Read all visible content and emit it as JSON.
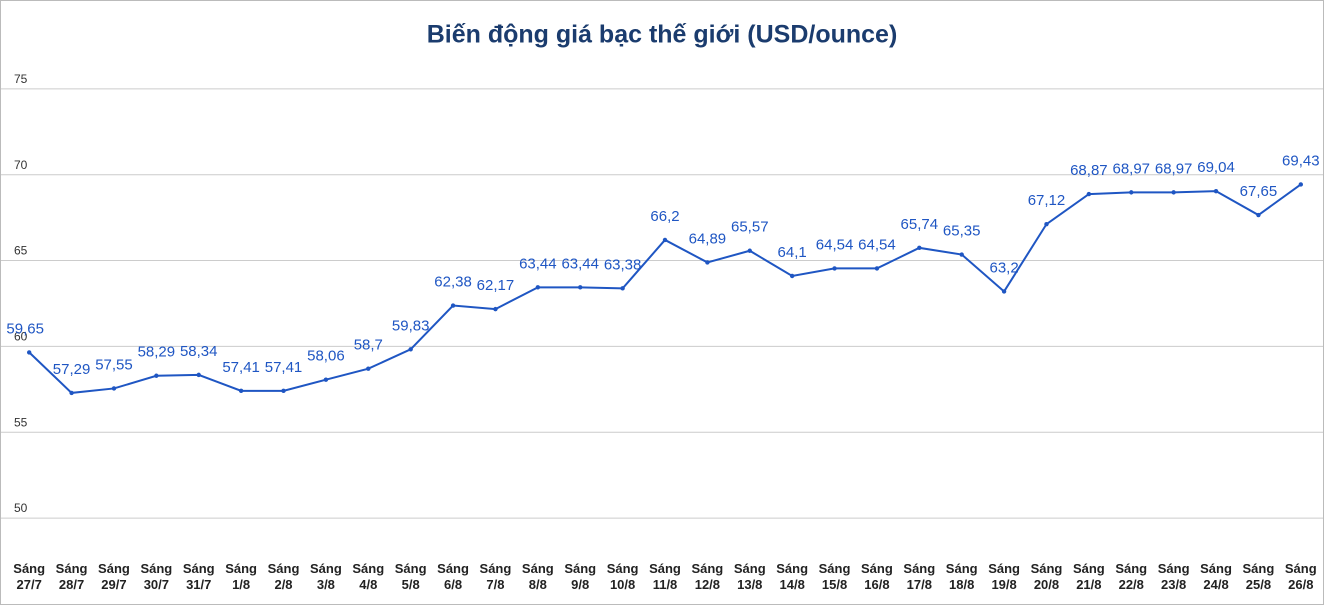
{
  "chart_data": {
    "type": "line",
    "title": "Biến động giá bạc thế giới (USD/ounce)",
    "categories": [
      "Sáng 27/7",
      "Sáng 28/7",
      "Sáng 29/7",
      "Sáng 30/7",
      "Sáng 31/7",
      "Sáng 1/8",
      "Sáng 2/8",
      "Sáng 3/8",
      "Sáng 4/8",
      "Sáng 5/8",
      "Sáng 6/8",
      "Sáng 7/8",
      "Sáng 8/8",
      "Sáng 9/8",
      "Sáng 10/8",
      "Sáng 11/8",
      "Sáng 12/8",
      "Sáng 13/8",
      "Sáng 14/8",
      "Sáng 15/8",
      "Sáng 16/8",
      "Sáng 17/8",
      "Sáng 18/8",
      "Sáng 19/8",
      "Sáng 20/8",
      "Sáng 21/8",
      "Sáng 22/8",
      "Sáng 23/8",
      "Sáng 24/8",
      "Sáng 25/8",
      "Sáng 26/8"
    ],
    "values": [
      59.65,
      57.29,
      57.55,
      58.29,
      58.34,
      57.41,
      57.41,
      58.06,
      58.7,
      59.83,
      62.38,
      62.17,
      63.44,
      63.44,
      63.38,
      66.2,
      64.89,
      65.57,
      64.1,
      64.54,
      64.54,
      65.74,
      65.35,
      63.2,
      67.12,
      68.87,
      68.97,
      68.97,
      69.04,
      67.65,
      69.43
    ],
    "value_labels": [
      "59,65",
      "57,29",
      "57,55",
      "58,29",
      "58,34",
      "57,41",
      "57,41",
      "58,06",
      "58,7",
      "59,83",
      "62,38",
      "62,17",
      "63,44",
      "63,44",
      "63,38",
      "66,2",
      "64,89",
      "65,57",
      "64,1",
      "64,54",
      "64,54",
      "65,74",
      "65,35",
      "63,2",
      "67,12",
      "68,87",
      "68,97",
      "68,97",
      "69,04",
      "67,65",
      "69,43"
    ],
    "color": "#1f56c3",
    "ylim": [
      47.5,
      80
    ],
    "yticks": [
      50,
      55,
      60,
      65,
      70,
      75
    ],
    "grid": true
  }
}
